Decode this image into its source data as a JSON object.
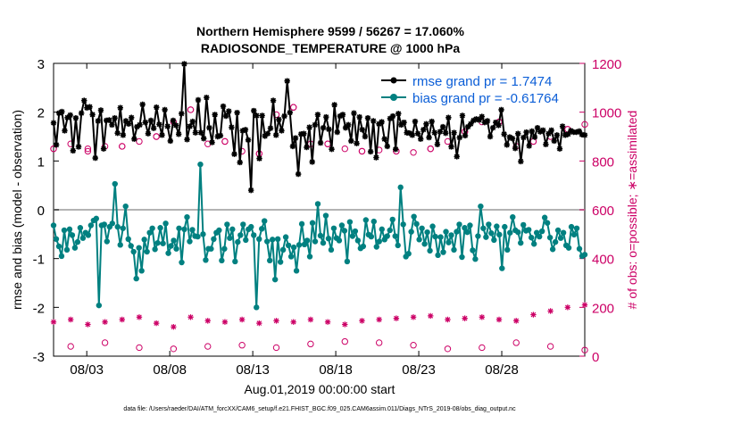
{
  "chart_data": {
    "type": "line",
    "title_line1": "Northern Hemisphere 9599 / 56267 = 17.060%",
    "title_line2": "RADIOSONDE_TEMPERATURE @ 1000 hPa",
    "ylabel_left": "rmse and bias (model - observation)",
    "ylabel_right": "# of obs: o=possible; ∗=assimilated",
    "xlabel": "Aug.01,2019 00:00:00 start",
    "footer": "data file: /Users/raeder/DAI/ATM_forcXX/CAM6_setup/f.e21.FHIST_BGC.f09_025.CAM6assim.011/Diags_NTrS_2019-08/obs_diag_output.nc",
    "x_range": [
      1,
      33
    ],
    "ylim_left": [
      -3,
      3
    ],
    "ylim_right": [
      0,
      1200
    ],
    "yticks_left": [
      "3",
      "2",
      "1",
      "0",
      "-1",
      "-2",
      "-3"
    ],
    "yticks_right": [
      "1200",
      "1000",
      "800",
      "600",
      "400",
      "200",
      "0"
    ],
    "xticks": [
      {
        "x": 3,
        "label": "08/03"
      },
      {
        "x": 8,
        "label": "08/08"
      },
      {
        "x": 13,
        "label": "08/13"
      },
      {
        "x": 18,
        "label": "08/18"
      },
      {
        "x": 23,
        "label": "08/23"
      },
      {
        "x": 28,
        "label": "08/28"
      }
    ],
    "legend": [
      {
        "label": "rmse grand pr = 1.7474",
        "color": "#000000"
      },
      {
        "label": "bias grand pr = -0.61764",
        "color": "#008080"
      }
    ],
    "colors": {
      "rmse": "#000000",
      "bias": "#008080",
      "obs": "#cc0066",
      "zero_line": "#b3b3b3",
      "legend_text": "#0b5ed7"
    },
    "series": [
      {
        "name": "rmse",
        "axis": "left",
        "values": [
          1.78,
          1.33,
          1.98,
          2.01,
          1.62,
          1.89,
          1.94,
          1.21,
          1.88,
          1.29,
          1.98,
          2.24,
          2.09,
          2.11,
          1.95,
          1.06,
          1.82,
          2.04,
          1.25,
          1.83,
          1.84,
          1.74,
          1.88,
          1.57,
          2.09,
          1.53,
          1.82,
          1.76,
          1.89,
          1.45,
          1.7,
          1.74,
          2.16,
          1.79,
          1.56,
          1.83,
          1.67,
          2.1,
          1.75,
          1.53,
          2.05,
          1.71,
          1.41,
          1.83,
          1.73,
          1.55,
          1.97,
          2.99,
          1.44,
          1.71,
          1.81,
          1.58,
          2.25,
          1.58,
          1.46,
          2.3,
          1.68,
          1.38,
          1.95,
          1.5,
          1.52,
          2.12,
          1.92,
          2.02,
          1.69,
          1.14,
          1.99,
          0.97,
          1.62,
          1.64,
          1.43,
          0.4,
          2.03,
          1.93,
          1.05,
          1.93,
          1.51,
          1.56,
          1.67,
          2.24,
          1.53,
          1.85,
          1.62,
          1.92,
          2.64,
          1.99,
          1.3,
          1.47,
          0.73,
          1.55,
          1.56,
          1.28,
          1.69,
          0.98,
          1.74,
          1.95,
          1.37,
          1.68,
          1.9,
          1.65,
          1.24,
          2.15,
          1.59,
          1.92,
          1.95,
          1.68,
          1.74,
          1.41,
          1.98,
          1.36,
          1.9,
          1.64,
          1.5,
          1.88,
          1.19,
          1.82,
          1.07,
          1.76,
          1.8,
          1.45,
          1.3,
          1.87,
          1.92,
          1.24,
          1.97,
          1.74,
          1.79,
          1.58,
          1.57,
          1.53,
          1.81,
          1.56,
          1.45,
          1.64,
          1.76,
          1.48,
          1.81,
          1.58,
          1.34,
          1.6,
          1.7,
          1.57,
          1.89,
          1.29,
          1.58,
          1.09,
          1.48,
          1.93,
          1.52,
          1.7,
          1.76,
          1.83,
          1.86,
          1.84,
          1.91,
          1.79,
          1.82,
          1.5,
          1.68,
          1.79,
          1.73,
          2.05,
          1.55,
          1.33,
          1.49,
          1.46,
          1.26,
          1.56,
          0.99,
          1.48,
          1.59,
          1.31,
          1.61,
          1.49,
          1.68,
          1.6,
          1.63,
          1.34,
          1.56,
          1.63,
          1.41,
          1.53,
          1.25,
          1.71,
          1.53,
          1.55,
          1.62,
          1.59,
          1.59,
          1.61,
          1.54,
          1.53
        ]
      },
      {
        "name": "bias",
        "axis": "left",
        "values": [
          -0.32,
          -0.6,
          -0.75,
          -0.95,
          -0.42,
          -0.82,
          -0.4,
          -0.52,
          -0.78,
          -0.66,
          -0.37,
          -0.58,
          -0.47,
          -0.52,
          -0.32,
          -0.22,
          -0.18,
          -1.96,
          -0.32,
          -0.3,
          -0.65,
          -0.35,
          -0.28,
          0.53,
          -0.35,
          -0.72,
          -0.38,
          0.07,
          -0.6,
          -0.74,
          -0.86,
          -1.41,
          -0.78,
          -1.25,
          -0.61,
          -0.86,
          -0.47,
          -0.38,
          -0.81,
          -0.68,
          -0.37,
          -0.69,
          -0.28,
          -0.89,
          -0.74,
          -0.63,
          -0.8,
          -0.38,
          -1.08,
          -0.4,
          -0.15,
          -0.65,
          -0.41,
          -0.54,
          -0.55,
          0.93,
          -0.5,
          -1.03,
          -0.8,
          -0.8,
          -0.6,
          -0.47,
          -0.42,
          -1.04,
          -0.8,
          -0.3,
          -0.58,
          -0.4,
          -1.06,
          -0.66,
          -0.52,
          -0.3,
          -0.62,
          -0.4,
          -0.35,
          -0.52,
          -2.0,
          -0.6,
          -0.39,
          -0.23,
          -0.65,
          -1.04,
          -0.61,
          -1.43,
          -0.6,
          -1.07,
          -0.82,
          -0.56,
          -0.73,
          -0.96,
          -0.77,
          -1.25,
          -0.72,
          -0.29,
          -0.71,
          -0.63,
          -0.96,
          -0.27,
          -0.65,
          0.12,
          -0.53,
          -0.68,
          -0.12,
          -0.59,
          -0.82,
          -0.38,
          -0.58,
          -0.63,
          -0.32,
          -0.43,
          -1.06,
          -0.25,
          -0.54,
          -0.44,
          -0.63,
          -0.79,
          -0.75,
          -0.21,
          -0.51,
          -0.55,
          -0.24,
          -0.76,
          -0.65,
          -0.4,
          -0.61,
          -0.54,
          -0.42,
          -0.2,
          -0.54,
          -0.73,
          0.46,
          -0.3,
          -0.96,
          -0.9,
          -0.45,
          -0.14,
          -0.29,
          -0.61,
          -0.38,
          -0.7,
          -0.46,
          -0.84,
          -0.34,
          -0.55,
          -0.93,
          -0.56,
          -0.87,
          -0.45,
          -0.67,
          -0.52,
          -0.82,
          -0.45,
          -0.3,
          -0.97,
          -0.37,
          -0.46,
          -0.32,
          -0.83,
          -1.01,
          -0.54,
          0.07,
          -0.38,
          -0.56,
          -0.3,
          -0.48,
          -0.62,
          -0.34,
          -0.51,
          -1.2,
          -0.35,
          -0.82,
          -0.47,
          -0.15,
          -0.42,
          -0.46,
          -0.68,
          -0.31,
          -0.43,
          -0.41,
          -0.57,
          -0.7,
          -0.47,
          -0.55,
          -0.44,
          -0.16,
          -0.27,
          -0.57,
          -0.81,
          -0.66,
          -0.42,
          -0.58,
          -0.47,
          -0.73,
          -0.78,
          -0.35,
          -0.51,
          -0.38,
          -0.8,
          -0.95,
          -0.92
        ]
      }
    ],
    "obs_series": [
      {
        "name": "possible",
        "marker": "o",
        "axis": "right",
        "values": [
          850,
          40,
          840,
          55,
          860,
          35,
          900,
          30,
          1010,
          40,
          880,
          45,
          830,
          35,
          1020,
          50,
          870,
          60,
          840,
          55,
          840,
          45,
          850,
          30,
          920,
          35,
          960,
          55,
          880,
          40,
          930,
          25
        ]
      },
      {
        "name": "possible_upper",
        "marker": "o",
        "axis": "right",
        "values": [
          850,
          870,
          850,
          860,
          860,
          880,
          900,
          960,
          1010,
          870,
          880,
          840,
          830,
          990,
          1020,
          870,
          870,
          850,
          840,
          845,
          840,
          835,
          850,
          880,
          920,
          960,
          960,
          860,
          880,
          900,
          930,
          950
        ]
      },
      {
        "name": "assimilated",
        "marker": "*",
        "axis": "right",
        "values": [
          140,
          150,
          130,
          140,
          150,
          160,
          135,
          120,
          160,
          145,
          140,
          150,
          135,
          145,
          140,
          150,
          140,
          130,
          145,
          150,
          155,
          160,
          165,
          150,
          155,
          160,
          150,
          145,
          170,
          185,
          200,
          210
        ]
      }
    ]
  }
}
